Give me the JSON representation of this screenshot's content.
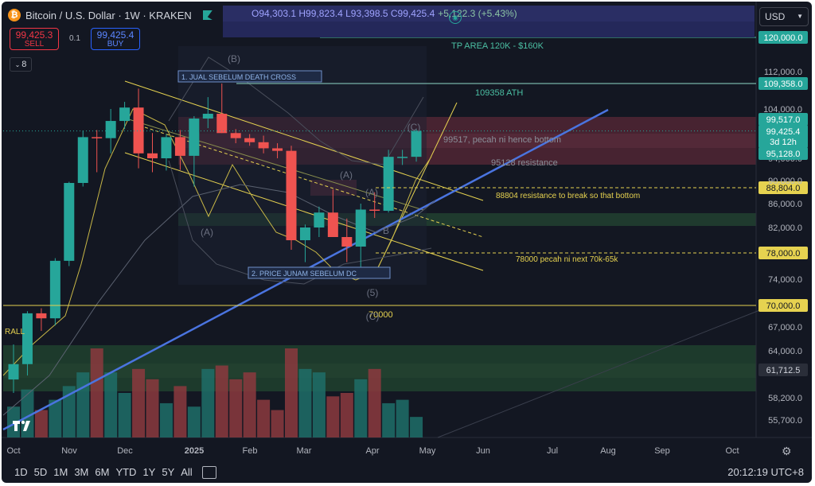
{
  "header": {
    "coin_glyph": "₿",
    "symbol_title": "Bitcoin / U.S. Dollar · 1W · KRAKEN",
    "ohlc": {
      "o": "O94,303.1",
      "h": "H99,823.4",
      "l": "L93,398.5",
      "c": "C99,425.4",
      "change": "+5,122.3 (+5.43%)"
    },
    "sell_price": "99,425.3",
    "sell_label": "SELL",
    "buy_price": "99,425.4",
    "buy_label": "BUY",
    "spread": "0.1",
    "indicators_count": "8",
    "currency": "USD"
  },
  "bottom": {
    "ranges": [
      "1D",
      "5D",
      "1M",
      "3M",
      "6M",
      "YTD",
      "1Y",
      "5Y",
      "All"
    ],
    "clock": "20:12:19 UTC+8"
  },
  "colors": {
    "up": "#26a69a",
    "down": "#ef5350",
    "blue_line": "#4a74e0",
    "yellow": "#e6d250",
    "bg": "#131722"
  },
  "chart_data": {
    "type": "candlestick",
    "ylim": [
      54000,
      125000
    ],
    "y_ticks": [
      "112,000.0",
      "104,000.0",
      "94,000.0",
      "90,000.0",
      "86,000.0",
      "82,000.0",
      "74,000.0",
      "67,000.0",
      "64,000.0",
      "58,200.0",
      "55,700.0"
    ],
    "x_labels": [
      "Oct",
      "Nov",
      "Dec",
      "2025",
      "Feb",
      "Mar",
      "Apr",
      "May",
      "Jun",
      "Jul",
      "Aug",
      "Sep",
      "Oct"
    ],
    "candles": [
      {
        "o": 60500,
        "h": 64800,
        "l": 58800,
        "c": 62400
      },
      {
        "o": 62400,
        "h": 69200,
        "l": 61000,
        "c": 68900
      },
      {
        "o": 68900,
        "h": 69600,
        "l": 66500,
        "c": 68200
      },
      {
        "o": 68200,
        "h": 77200,
        "l": 67200,
        "c": 76800
      },
      {
        "o": 76800,
        "h": 89800,
        "l": 76000,
        "c": 89600
      },
      {
        "o": 89600,
        "h": 99500,
        "l": 89000,
        "c": 98200
      },
      {
        "o": 98200,
        "h": 99600,
        "l": 91500,
        "c": 98000
      },
      {
        "o": 98000,
        "h": 104000,
        "l": 95000,
        "c": 101500
      },
      {
        "o": 101500,
        "h": 105500,
        "l": 99800,
        "c": 104300
      },
      {
        "o": 104300,
        "h": 108300,
        "l": 92200,
        "c": 95000
      },
      {
        "o": 95000,
        "h": 99000,
        "l": 91500,
        "c": 94000
      },
      {
        "o": 94000,
        "h": 98800,
        "l": 91800,
        "c": 98200
      },
      {
        "o": 98200,
        "h": 99600,
        "l": 91900,
        "c": 94500
      },
      {
        "o": 94500,
        "h": 102500,
        "l": 89000,
        "c": 102000
      },
      {
        "o": 102000,
        "h": 106500,
        "l": 100000,
        "c": 103000
      },
      {
        "o": 103000,
        "h": 109358,
        "l": 99000,
        "c": 99000
      },
      {
        "o": 99000,
        "h": 99800,
        "l": 97000,
        "c": 98000
      },
      {
        "o": 98000,
        "h": 98800,
        "l": 96500,
        "c": 97200
      },
      {
        "o": 97200,
        "h": 98500,
        "l": 95000,
        "c": 96000
      },
      {
        "o": 96000,
        "h": 97000,
        "l": 94000,
        "c": 95500
      },
      {
        "o": 95500,
        "h": 96500,
        "l": 78500,
        "c": 80000
      },
      {
        "o": 80000,
        "h": 82500,
        "l": 76600,
        "c": 82000
      },
      {
        "o": 82000,
        "h": 85500,
        "l": 80500,
        "c": 84500
      },
      {
        "o": 84500,
        "h": 88500,
        "l": 81000,
        "c": 80500
      },
      {
        "o": 80500,
        "h": 83500,
        "l": 76600,
        "c": 79000
      },
      {
        "o": 79000,
        "h": 86000,
        "l": 74400,
        "c": 85000
      },
      {
        "o": 85000,
        "h": 88000,
        "l": 83600,
        "c": 84800
      },
      {
        "o": 84800,
        "h": 95700,
        "l": 84500,
        "c": 94300
      },
      {
        "o": 94300,
        "h": 95700,
        "l": 92800,
        "c": 94300
      },
      {
        "o": 94303,
        "h": 99823,
        "l": 93398,
        "c": 99425
      }
    ],
    "volume": [
      9,
      14,
      8,
      11,
      15,
      19,
      26,
      19,
      13,
      20,
      17,
      10,
      15,
      9,
      20,
      21,
      17,
      19,
      11,
      8,
      26,
      20,
      19,
      12,
      13,
      17,
      20,
      10,
      11,
      6
    ],
    "hlines": [
      {
        "value": 120000,
        "label": "120,000.0"
      },
      {
        "value": 109358,
        "label": "109,358.0"
      },
      {
        "value": 88804,
        "label": "88,804.0"
      },
      {
        "value": 78000,
        "label": "78,000.0"
      },
      {
        "value": 70000,
        "label": "70,000.0"
      }
    ],
    "price_tags": [
      {
        "label": "99,517.0"
      },
      {
        "label": "99,425.4"
      },
      {
        "label": "3d 12h"
      },
      {
        "label": "95,128.0"
      },
      {
        "label": "61,712.5"
      }
    ],
    "annotations": [
      "TP AREA 120K - $160K",
      "109358 ATH",
      "1. JUAL SEBELUM DEATH CROSS",
      "99517, pecah ni hence bottom",
      "95128 resistance",
      "88804 resistance to break so that bottom",
      "78000 pecah ni next 70k-65k",
      "2. PRICE JUNAM SEBELUM DC",
      "70000",
      "RALL"
    ],
    "wave_labels": [
      "(B)",
      "(A)",
      "(C)",
      "(A)",
      "(A)",
      "B",
      "(5)",
      "(C)"
    ]
  }
}
